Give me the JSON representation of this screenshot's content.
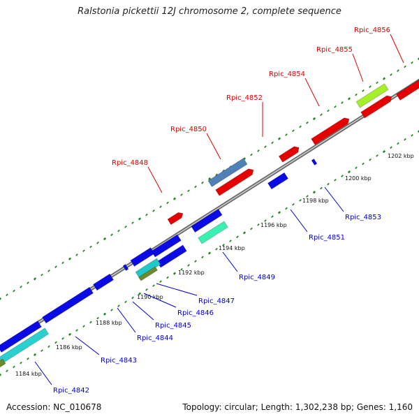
{
  "title": "Ralstonia pickettii 12J chromosome 2, complete sequence",
  "footer": {
    "accession": "Accession: NC_010678",
    "info": "Topology: circular; Length: 1,302,238 bp; Genes: 1,160"
  },
  "colors": {
    "forward_label": "#dd0000",
    "reverse_label": "#0000cc",
    "backbone": "#888888",
    "tick": "#228822"
  },
  "ticks": [
    "1184 kbp",
    "1186 kbp",
    "1188 kbp",
    "1190 kbp",
    "1192 kbp",
    "1194 kbp",
    "1196 kbp",
    "1198 kbp",
    "1200 kbp",
    "1202 kbp"
  ],
  "labels": {
    "forward": [
      "Rpic_4848",
      "Rpic_4850",
      "Rpic_4852",
      "Rpic_4854",
      "Rpic_4855",
      "Rpic_4856"
    ],
    "reverse": [
      "Rpic_4842",
      "Rpic_4843",
      "Rpic_4844",
      "Rpic_4845",
      "Rpic_4846",
      "Rpic_4847",
      "Rpic_4849",
      "Rpic_4851",
      "Rpic_4853"
    ]
  }
}
